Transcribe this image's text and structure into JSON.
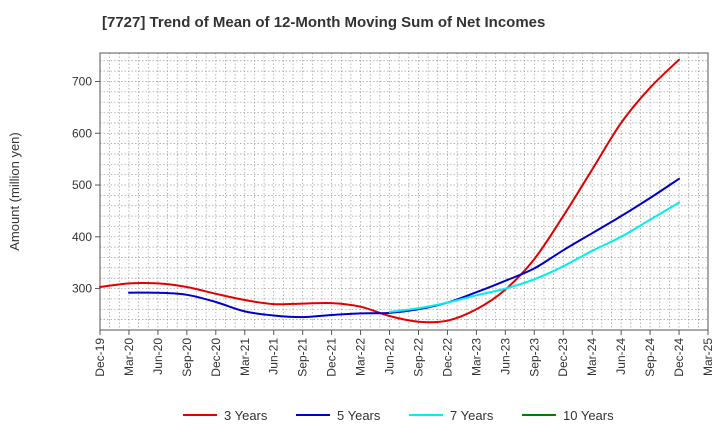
{
  "chart_data": {
    "type": "line",
    "title": "[7727]  Trend of Mean of 12-Month Moving Sum of Net Incomes",
    "xlabel": "",
    "ylabel": "Amount (million yen)",
    "ylim": [
      220,
      755
    ],
    "yticks": [
      300,
      400,
      500,
      600,
      700
    ],
    "x_tick_labels": [
      "Dec-19",
      "Mar-20",
      "Jun-20",
      "Sep-20",
      "Dec-20",
      "Mar-21",
      "Jun-21",
      "Sep-21",
      "Dec-21",
      "Mar-22",
      "Jun-22",
      "Sep-22",
      "Dec-22",
      "Mar-23",
      "Jun-23",
      "Sep-23",
      "Dec-23",
      "Mar-24",
      "Jun-24",
      "Sep-24",
      "Dec-24",
      "Mar-25"
    ],
    "grid": true,
    "legend_position": "bottom",
    "series": [
      {
        "name": "3 Years",
        "color": "#e00000",
        "points": [
          [
            "Dec-19",
            303
          ],
          [
            "Mar-20",
            310
          ],
          [
            "Jun-20",
            310
          ],
          [
            "Sep-20",
            303
          ],
          [
            "Dec-20",
            290
          ],
          [
            "Mar-21",
            278
          ],
          [
            "Jun-21",
            270
          ],
          [
            "Sep-21",
            271
          ],
          [
            "Dec-21",
            272
          ],
          [
            "Mar-22",
            265
          ],
          [
            "Jun-22",
            247
          ],
          [
            "Sep-22",
            236
          ],
          [
            "Dec-22",
            238
          ],
          [
            "Mar-23",
            260
          ],
          [
            "Jun-23",
            298
          ],
          [
            "Sep-23",
            357
          ],
          [
            "Dec-23",
            440
          ],
          [
            "Mar-24",
            530
          ],
          [
            "Jun-24",
            620
          ],
          [
            "Sep-24",
            688
          ],
          [
            "Dec-24",
            742
          ]
        ]
      },
      {
        "name": "5 Years",
        "color": "#0000cc",
        "points": [
          [
            "Mar-20",
            292
          ],
          [
            "Jun-20",
            292
          ],
          [
            "Sep-20",
            288
          ],
          [
            "Dec-20",
            274
          ],
          [
            "Mar-21",
            256
          ],
          [
            "Jun-21",
            248
          ],
          [
            "Sep-21",
            245
          ],
          [
            "Dec-21",
            249
          ],
          [
            "Mar-22",
            252
          ],
          [
            "Jun-22",
            253
          ],
          [
            "Sep-22",
            260
          ],
          [
            "Dec-22",
            273
          ],
          [
            "Mar-23",
            293
          ],
          [
            "Jun-23",
            315
          ],
          [
            "Sep-23",
            339
          ],
          [
            "Dec-23",
            374
          ],
          [
            "Mar-24",
            407
          ],
          [
            "Jun-24",
            440
          ],
          [
            "Sep-24",
            475
          ],
          [
            "Dec-24",
            512
          ]
        ]
      },
      {
        "name": "7 Years",
        "color": "#00eeee",
        "points": [
          [
            "Jun-22",
            255
          ],
          [
            "Sep-22",
            262
          ],
          [
            "Dec-22",
            273
          ],
          [
            "Mar-23",
            287
          ],
          [
            "Jun-23",
            300
          ],
          [
            "Sep-23",
            318
          ],
          [
            "Dec-23",
            343
          ],
          [
            "Mar-24",
            373
          ],
          [
            "Jun-24",
            400
          ],
          [
            "Sep-24",
            433
          ],
          [
            "Dec-24",
            466
          ]
        ]
      },
      {
        "name": "10 Years",
        "color": "#008000",
        "points": []
      }
    ]
  }
}
